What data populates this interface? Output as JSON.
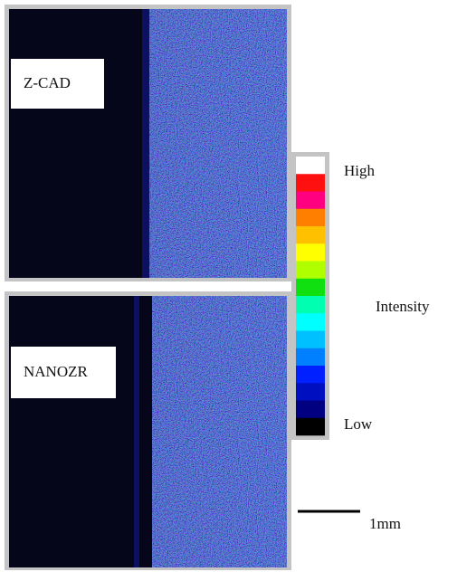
{
  "panels": [
    {
      "label": "Z-CAD"
    },
    {
      "label": "NANOZR"
    }
  ],
  "colorbar": {
    "high": "High",
    "title": "Intensity",
    "low": "Low",
    "colors": [
      "#ffffff",
      "#ff1010",
      "#ff0080",
      "#ff8000",
      "#ffc000",
      "#ffff00",
      "#b0ff00",
      "#10e010",
      "#00ffb0",
      "#00ffff",
      "#00c0ff",
      "#0080ff",
      "#0020ff",
      "#0010c0",
      "#000080",
      "#000000"
    ]
  },
  "scale_bar": {
    "label": "1mm"
  }
}
